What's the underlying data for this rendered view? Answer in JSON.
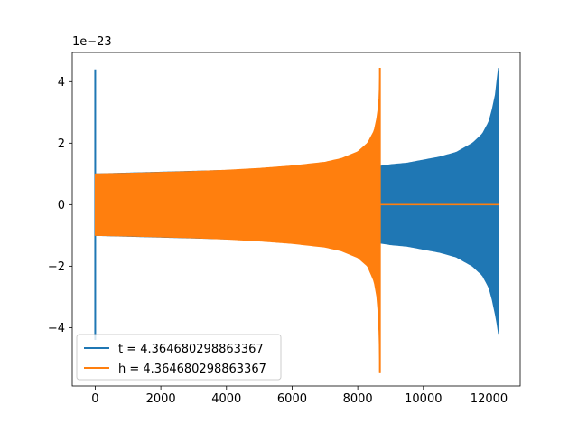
{
  "chart_data": {
    "type": "line",
    "title": "",
    "xlabel": "",
    "ylabel": "",
    "y_scale_label": "1e−23",
    "xlim": [
      -700,
      12950
    ],
    "ylim": [
      -5.9,
      4.95
    ],
    "x_ticks": [
      0,
      2000,
      4000,
      6000,
      8000,
      10000,
      12000
    ],
    "y_ticks": [
      -4,
      -2,
      0,
      2,
      4
    ],
    "grid": false,
    "legend_position": "lower-left",
    "series": [
      {
        "name": "t = 4.364680298863367",
        "color": "#1f77b4",
        "envelope": {
          "x": [
            0,
            8690,
            9000,
            9500,
            10000,
            10500,
            11000,
            11500,
            11800,
            12000,
            12100,
            12200,
            12250,
            12270,
            12290
          ],
          "upper": [
            1.0,
            1.25,
            1.3,
            1.35,
            1.45,
            1.55,
            1.7,
            2.0,
            2.3,
            2.7,
            3.1,
            3.6,
            4.1,
            4.45,
            4.45
          ],
          "lower": [
            -1.0,
            -1.25,
            -1.3,
            -1.35,
            -1.45,
            -1.55,
            -1.7,
            -2.0,
            -2.3,
            -2.7,
            -3.1,
            -3.6,
            -3.9,
            -4.2,
            -4.2
          ]
        },
        "startup_spike": {
          "x": 0,
          "max": 4.4,
          "min": -4.4
        }
      },
      {
        "name": "h = 4.364680298863367",
        "color": "#ff7f0e",
        "envelope": {
          "x": [
            0,
            1000,
            2000,
            3000,
            4000,
            5000,
            6000,
            7000,
            7500,
            8000,
            8300,
            8500,
            8600,
            8650,
            8680
          ],
          "upper": [
            1.0,
            1.02,
            1.05,
            1.08,
            1.12,
            1.18,
            1.26,
            1.38,
            1.5,
            1.72,
            2.0,
            2.4,
            2.9,
            3.5,
            4.45
          ],
          "lower": [
            -1.0,
            -1.02,
            -1.05,
            -1.08,
            -1.12,
            -1.18,
            -1.26,
            -1.38,
            -1.5,
            -1.72,
            -2.0,
            -2.5,
            -3.1,
            -4.2,
            -5.45
          ]
        },
        "tail": {
          "x_start": 8690,
          "x_end": 12290,
          "value": 0
        }
      }
    ]
  }
}
